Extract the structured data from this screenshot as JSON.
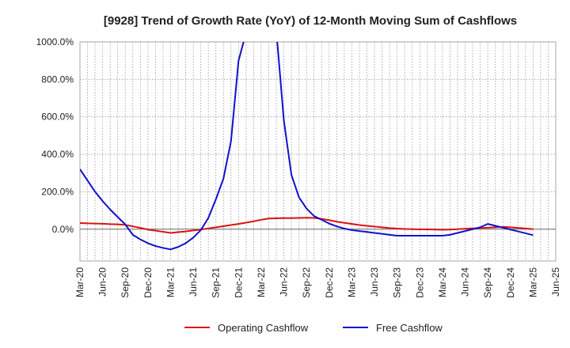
{
  "chart_data": {
    "type": "line",
    "title": "[9928]  Trend of Growth Rate (YoY) of 12-Month Moving Sum of Cashflows",
    "xlabel": "",
    "ylabel": "",
    "x_ticks": [
      "Mar-20",
      "Jun-20",
      "Sep-20",
      "Dec-20",
      "Mar-21",
      "Jun-21",
      "Sep-21",
      "Dec-21",
      "Mar-22",
      "Jun-22",
      "Sep-22",
      "Dec-22",
      "Mar-23",
      "Jun-23",
      "Sep-23",
      "Dec-23",
      "Mar-24",
      "Jun-24",
      "Sep-24",
      "Dec-24",
      "Mar-25",
      "Jun-25"
    ],
    "y_ticks": [
      {
        "value": 0,
        "label": "0.0%"
      },
      {
        "value": 200,
        "label": "200.0%"
      },
      {
        "value": 400,
        "label": "400.0%"
      },
      {
        "value": 600,
        "label": "600.0%"
      },
      {
        "value": 800,
        "label": "800.0%"
      },
      {
        "value": 1000,
        "label": "1000.0%"
      }
    ],
    "ylim": [
      -170,
      1000
    ],
    "grid": true,
    "legend_position": "bottom",
    "x": [
      "Mar-20",
      "Apr-20",
      "May-20",
      "Jun-20",
      "Jul-20",
      "Aug-20",
      "Sep-20",
      "Oct-20",
      "Nov-20",
      "Dec-20",
      "Jan-21",
      "Feb-21",
      "Mar-21",
      "Apr-21",
      "May-21",
      "Jun-21",
      "Jul-21",
      "Aug-21",
      "Sep-21",
      "Oct-21",
      "Nov-21",
      "Dec-21",
      "Jan-22",
      "Feb-22",
      "Mar-22",
      "Apr-22",
      "May-22",
      "Jun-22",
      "Jul-22",
      "Aug-22",
      "Sep-22",
      "Oct-22",
      "Nov-22",
      "Dec-22",
      "Jan-23",
      "Feb-23",
      "Mar-23",
      "Apr-23",
      "May-23",
      "Jun-23",
      "Jul-23",
      "Aug-23",
      "Sep-23",
      "Oct-23",
      "Nov-23",
      "Dec-23",
      "Jan-24",
      "Feb-24",
      "Mar-24",
      "Apr-24",
      "May-24",
      "Jun-24",
      "Jul-24",
      "Aug-24",
      "Sep-24",
      "Oct-24",
      "Nov-24",
      "Dec-24",
      "Jan-25",
      "Feb-25",
      "Mar-25"
    ],
    "series": [
      {
        "name": "Operating Cashflow",
        "color": "#dd1111",
        "values": [
          33,
          31,
          30,
          29,
          27,
          26,
          23,
          15,
          7,
          -2,
          -8,
          -14,
          -20,
          -16,
          -12,
          -7,
          -2,
          4,
          10,
          16,
          22,
          28,
          35,
          42,
          50,
          57,
          58,
          59,
          59,
          60,
          61,
          60,
          55,
          48,
          40,
          34,
          28,
          22,
          18,
          14,
          10,
          6,
          3,
          1,
          0,
          -1,
          -1,
          -2,
          -3,
          -2,
          0,
          2,
          4,
          6,
          8,
          10,
          12,
          10,
          7,
          4,
          0
        ]
      },
      {
        "name": "Free Cashflow",
        "color": "#1111cc",
        "values": [
          320,
          260,
          200,
          150,
          105,
          65,
          25,
          -30,
          -55,
          -75,
          -90,
          -100,
          -108,
          -95,
          -75,
          -45,
          -5,
          60,
          160,
          270,
          470,
          900,
          1050,
          1060,
          1070,
          1070,
          1060,
          580,
          290,
          170,
          110,
          70,
          50,
          30,
          15,
          3,
          -5,
          -10,
          -15,
          -20,
          -25,
          -30,
          -35,
          -35,
          -35,
          -35,
          -35,
          -35,
          -35,
          -30,
          -20,
          -10,
          0,
          10,
          28,
          18,
          8,
          -2,
          -12,
          -22,
          -32
        ]
      }
    ]
  }
}
